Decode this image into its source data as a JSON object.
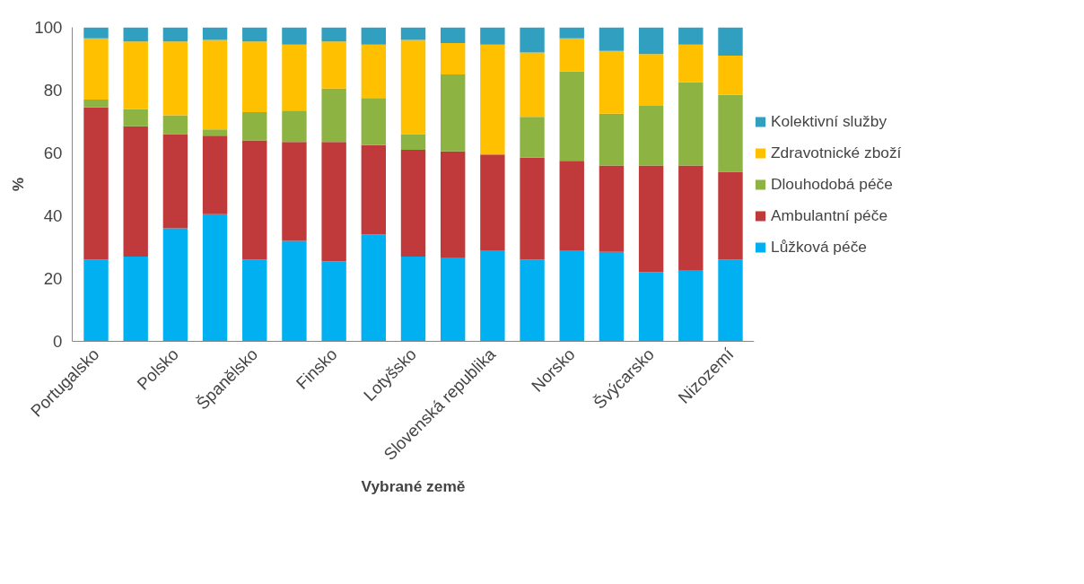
{
  "chart_data": {
    "type": "bar",
    "stacked": true,
    "xlabel": "Vybrané země",
    "ylabel": "%",
    "categories": [
      "Portugalsko",
      null,
      "Polsko",
      null,
      "Španělsko",
      null,
      "Finsko",
      null,
      "Lotyšsko",
      null,
      "Slovenská republika",
      null,
      "Norsko",
      null,
      "Švýcarsko",
      null,
      "Nizozemí"
    ],
    "series": [
      {
        "name": "Lůžková péče",
        "color": "#00b0f0",
        "values": [
          26,
          27,
          36,
          40.5,
          26,
          32,
          25.5,
          34,
          27,
          26.5,
          29,
          26,
          29,
          28.5,
          22,
          22.5,
          26
        ]
      },
      {
        "name": "Ambulantní péče",
        "color": "#c0393b",
        "values": [
          48.5,
          41.5,
          30,
          25,
          38,
          31.5,
          38,
          28.5,
          34,
          34,
          30.5,
          32.5,
          28.5,
          27.5,
          34,
          33.5,
          28
        ]
      },
      {
        "name": "Dlouhodobá péče",
        "color": "#8db343",
        "values": [
          2.5,
          5.5,
          6,
          2,
          9,
          10,
          17,
          15,
          5,
          24.5,
          0,
          13,
          28.5,
          16.5,
          19,
          26.5,
          24.5
        ]
      },
      {
        "name": "Zdravotnické zboží",
        "color": "#ffc000",
        "values": [
          19.5,
          21.5,
          23.5,
          28.5,
          22.5,
          21,
          15,
          17,
          30,
          10,
          35,
          20.5,
          10.5,
          20,
          16.5,
          12,
          12.5
        ]
      },
      {
        "name": "Kolektivní služby",
        "color": "#31a0c0",
        "values": [
          3.5,
          4.5,
          4.5,
          4,
          4.5,
          5.5,
          4.5,
          5.5,
          4,
          5,
          5.5,
          8,
          3.5,
          7.5,
          8.5,
          5.5,
          9
        ]
      }
    ],
    "ylim": [
      0,
      100
    ],
    "yticks": [
      0,
      20,
      40,
      60,
      80,
      100
    ],
    "grid": false,
    "legend": "right"
  }
}
